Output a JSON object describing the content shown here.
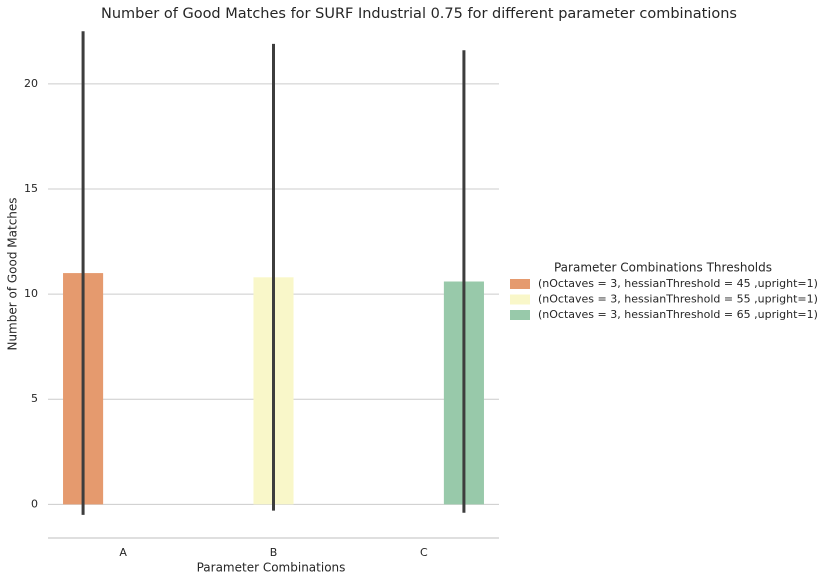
{
  "chart_data": {
    "type": "bar",
    "title": "Number of Good Matches for SURF Industrial 0.75 for different parameter combinations",
    "x_label": "Parameter Combinations",
    "y_label": "Number of Good Matches",
    "legend_title": "Parameter Combinations Thresholds",
    "legend_position": "right",
    "categories": [
      "A",
      "B",
      "C"
    ],
    "series": [
      {
        "name": "(nOctaves = 3, hessianThreshold = 45 ,upright=1)",
        "color": "#e59a6e",
        "values": [
          11.0,
          null,
          null
        ],
        "errors": [
          11.5,
          null,
          null
        ]
      },
      {
        "name": "(nOctaves = 3, hessianThreshold = 55 ,upright=1)",
        "color": "#f9f7c9",
        "values": [
          null,
          10.8,
          null
        ],
        "errors": [
          null,
          11.1,
          null
        ]
      },
      {
        "name": "(nOctaves = 3, hessianThreshold = 65 ,upright=1)",
        "color": "#98c9aa",
        "values": [
          null,
          null,
          10.6
        ],
        "errors": [
          null,
          null,
          11.0
        ]
      }
    ],
    "ylim": [
      -1.6,
      22.8
    ],
    "yticks": [
      0,
      5,
      10,
      15,
      20
    ],
    "grid": true
  }
}
